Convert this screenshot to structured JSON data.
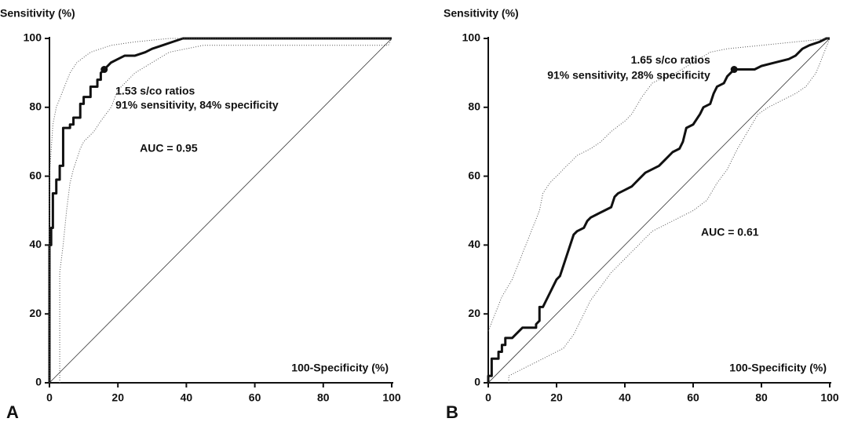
{
  "chart_data": [
    {
      "type": "line",
      "panel_label": "A",
      "ylabel": "Sensitivity (%)",
      "xlabel": "100-Specificity (%)",
      "xlim": [
        0,
        100
      ],
      "ylim": [
        0,
        100
      ],
      "xticks": [
        0,
        20,
        40,
        60,
        80,
        100
      ],
      "yticks": [
        0,
        20,
        40,
        60,
        80,
        100
      ],
      "series": [
        {
          "color": "#111111",
          "style": "solid",
          "width": 3,
          "x": [
            0,
            0,
            0.5,
            0.5,
            1,
            1,
            2,
            2,
            3,
            3,
            4,
            4,
            6,
            6,
            7,
            7,
            9,
            9,
            10,
            10,
            12,
            12,
            14,
            14,
            15,
            15,
            16,
            17,
            18,
            20,
            22,
            25,
            28,
            30,
            33,
            36,
            39,
            100
          ],
          "values": [
            0,
            40,
            40,
            45,
            45,
            55,
            55,
            59,
            59,
            63,
            63,
            74,
            74,
            75,
            75,
            77,
            77,
            81,
            81,
            83,
            83,
            86,
            86,
            88,
            88,
            90,
            91,
            92,
            93,
            94,
            95,
            95,
            96,
            97,
            98,
            99,
            100,
            100
          ]
        },
        {
          "color": "#555555",
          "style": "dotted",
          "width": 1,
          "x": [
            0,
            0,
            1,
            2,
            4,
            6,
            8,
            12,
            18,
            25,
            35,
            100
          ],
          "values": [
            0,
            60,
            75,
            80,
            85,
            90,
            93,
            96,
            98,
            99,
            100,
            100
          ]
        },
        {
          "color": "#555555",
          "style": "dotted",
          "width": 1,
          "x": [
            3,
            3,
            4,
            5,
            6,
            7,
            9,
            10,
            13,
            15,
            18,
            20,
            25,
            30,
            35,
            40,
            45,
            99,
            100
          ],
          "values": [
            0,
            32,
            40,
            50,
            58,
            62,
            68,
            70,
            73,
            76,
            80,
            85,
            90,
            93,
            96,
            97,
            98,
            98,
            100
          ]
        },
        {
          "color": "#333333",
          "style": "solid",
          "width": 0.8,
          "x": [
            0,
            100
          ],
          "values": [
            0,
            100
          ]
        }
      ],
      "points": {
        "color": "#111111",
        "x": [
          16
        ],
        "values": [
          91
        ]
      },
      "annotations": [
        "1.53 s/co ratios",
        "91% sensitivity, 84% specificity",
        "AUC = 0.95"
      ]
    },
    {
      "type": "line",
      "panel_label": "B",
      "ylabel": "Sensitivity (%)",
      "xlabel": "100-Specificity (%)",
      "xlim": [
        0,
        100
      ],
      "ylim": [
        0,
        100
      ],
      "xticks": [
        0,
        20,
        40,
        60,
        80,
        100
      ],
      "yticks": [
        0,
        20,
        40,
        60,
        80,
        100
      ],
      "series": [
        {
          "color": "#111111",
          "style": "solid",
          "width": 3,
          "x": [
            0,
            0,
            1,
            1,
            3,
            3,
            4,
            4,
            5,
            5,
            7,
            8,
            9,
            10,
            14,
            14,
            15,
            15,
            16,
            17,
            18,
            19,
            20,
            21,
            22,
            23,
            24,
            25,
            26,
            28,
            29,
            30,
            32,
            34,
            36,
            37,
            38,
            40,
            42,
            43,
            44,
            46,
            48,
            50,
            52,
            54,
            56,
            57,
            58,
            60,
            62,
            63,
            65,
            66,
            67,
            69,
            70,
            72,
            78,
            80,
            84,
            88,
            90,
            92,
            94,
            97,
            99,
            100
          ],
          "values": [
            0,
            2,
            2,
            7,
            7,
            9,
            9,
            11,
            11,
            13,
            13,
            14,
            15,
            16,
            16,
            17,
            18,
            22,
            22,
            24,
            26,
            28,
            30,
            31,
            34,
            37,
            40,
            43,
            44,
            45,
            47,
            48,
            49,
            50,
            51,
            54,
            55,
            56,
            57,
            58,
            59,
            61,
            62,
            63,
            65,
            67,
            68,
            70,
            74,
            75,
            78,
            80,
            81,
            84,
            86,
            87,
            89,
            91,
            91,
            92,
            93,
            94,
            95,
            97,
            98,
            99,
            100,
            100
          ]
        },
        {
          "color": "#555555",
          "style": "dotted",
          "width": 1,
          "x": [
            0,
            2,
            4,
            7,
            9,
            11,
            13,
            15,
            16,
            18,
            20,
            23,
            26,
            30,
            33,
            36,
            40,
            42,
            45,
            48,
            50,
            55,
            60,
            65,
            70,
            80,
            90,
            100
          ],
          "values": [
            15,
            20,
            25,
            30,
            35,
            40,
            45,
            50,
            55,
            58,
            60,
            63,
            66,
            68,
            70,
            73,
            76,
            78,
            83,
            87,
            88,
            90,
            93,
            96,
            97,
            98,
            99,
            100
          ]
        },
        {
          "color": "#555555",
          "style": "dotted",
          "width": 1,
          "x": [
            6,
            6,
            10,
            14,
            18,
            22,
            25,
            28,
            30,
            33,
            36,
            40,
            44,
            48,
            52,
            56,
            60,
            64,
            67,
            70,
            73,
            76,
            79,
            82,
            86,
            90,
            93,
            96,
            98,
            100
          ],
          "values": [
            0,
            2,
            4,
            6,
            8,
            10,
            14,
            20,
            24,
            28,
            32,
            36,
            40,
            44,
            46,
            48,
            50,
            53,
            58,
            62,
            68,
            73,
            78,
            80,
            82,
            84,
            86,
            90,
            95,
            100
          ]
        },
        {
          "color": "#333333",
          "style": "solid",
          "width": 0.8,
          "x": [
            0,
            100
          ],
          "values": [
            0,
            100
          ]
        }
      ],
      "points": {
        "color": "#111111",
        "x": [
          72
        ],
        "values": [
          91
        ]
      },
      "annotations": [
        "1.65 s/co ratios",
        "91% sensitivity, 28% specificity",
        "AUC = 0.61"
      ]
    }
  ]
}
